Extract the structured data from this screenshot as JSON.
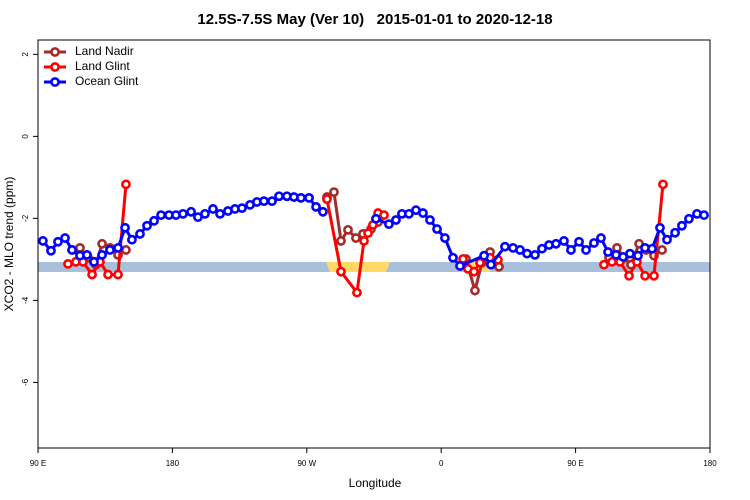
{
  "chart_data": {
    "type": "line",
    "title": "12.5S-7.5S May (Ver 10)   2015-01-01 to 2020-12-18",
    "x_label": "Longitude",
    "y_label": "XCO2 - MLO trend (ppm)",
    "xlim": [
      90,
      540
    ],
    "ylim": [
      -7.6,
      2.35
    ],
    "xticks": [
      {
        "value": 90,
        "label": "90 E"
      },
      {
        "value": 180,
        "label": "180"
      },
      {
        "value": 270,
        "label": "90 W"
      },
      {
        "value": 360,
        "label": "0"
      },
      {
        "value": 450,
        "label": "90 E"
      },
      {
        "value": 540,
        "label": "180"
      }
    ],
    "yticks": [
      2,
      0,
      -2,
      -4,
      -6
    ],
    "legend": "top-left",
    "series": [
      {
        "name": "Land Nadir",
        "color": "#a52a2a",
        "x": [
          112.8,
          118.1,
          123.5,
          128.8,
          132.9,
          138.2,
          143.6,
          148.9,
          240,
          283.5,
          288.2,
          292.9,
          297.6,
          302.9,
          307.6,
          313.0,
          317.7,
          350,
          376.6,
          382.6,
          387.3,
          392.7,
          398.7,
          450,
          472.4,
          477.7,
          482.4,
          487.1,
          492.5,
          497.2,
          502.5,
          507.9
        ],
        "values": [
          -2.77,
          -2.72,
          -2.96,
          -3.13,
          -2.62,
          -2.72,
          -2.89,
          -2.77,
          null,
          -1.48,
          -1.36,
          -2.55,
          -2.28,
          -2.48,
          -2.38,
          -2.26,
          -2.09,
          null,
          -2.99,
          -3.76,
          -3.08,
          -2.82,
          -3.18,
          null,
          -2.96,
          -2.72,
          -2.96,
          -3.13,
          -2.62,
          -2.77,
          -2.91,
          -2.77
        ]
      },
      {
        "name": "Land Glint",
        "color": "#ff0000",
        "x": [
          110.1,
          115.4,
          120.1,
          126.2,
          131.5,
          136.9,
          143.6,
          148.9,
          240,
          283.5,
          292.9,
          303.6,
          308.3,
          311.0,
          314.3,
          317.7,
          321.7,
          350,
          374.6,
          377.9,
          382.0,
          386.0,
          392.7,
          398.0,
          450,
          469.0,
          474.4,
          479.7,
          485.8,
          491.1,
          496.5,
          502.5,
          508.5
        ],
        "values": [
          -3.11,
          -3.06,
          -3.06,
          -3.37,
          -3.06,
          -3.37,
          -3.37,
          -1.17,
          null,
          -1.53,
          -3.3,
          -3.81,
          -2.55,
          -2.36,
          -2.16,
          -1.87,
          -1.92,
          null,
          -2.99,
          -3.23,
          -3.3,
          -3.08,
          -2.96,
          -3.01,
          null,
          -3.13,
          -3.06,
          -3.06,
          -3.4,
          -3.06,
          -3.4,
          -3.4,
          -1.17
        ]
      },
      {
        "name": "Ocean Glint",
        "color": "#0000ff",
        "x": [
          93.3,
          98.7,
          103.4,
          108.1,
          112.8,
          118.1,
          122.8,
          127.5,
          132.9,
          138.2,
          143.6,
          148.3,
          152.9,
          158.3,
          163.0,
          167.7,
          172.4,
          177.7,
          182.4,
          187.1,
          192.5,
          197.1,
          201.8,
          207.2,
          211.9,
          217.2,
          221.9,
          226.6,
          232.0,
          236.6,
          241.3,
          246.7,
          251.4,
          256.7,
          261.4,
          266.1,
          271.5,
          276.2,
          280.8,
          300,
          316.3,
          325.0,
          329.7,
          333.7,
          338.4,
          343.1,
          347.8,
          352.5,
          357.2,
          362.5,
          367.9,
          372.6,
          388.7,
          393.3,
          402.7,
          408.1,
          412.8,
          417.5,
          422.8,
          427.5,
          432.2,
          436.9,
          442.2,
          446.9,
          452.3,
          457.0,
          462.3,
          467.0,
          471.7,
          477.1,
          481.8,
          486.4,
          491.8,
          496.5,
          501.2,
          506.5,
          511.2,
          516.6,
          521.2,
          525.9,
          531.3,
          536.0
        ],
        "values": [
          -2.55,
          -2.79,
          -2.57,
          -2.48,
          -2.77,
          -2.91,
          -2.89,
          -3.06,
          -2.89,
          -2.77,
          -2.72,
          -2.23,
          -2.52,
          -2.38,
          -2.18,
          -2.06,
          -1.92,
          -1.92,
          -1.92,
          -1.89,
          -1.84,
          -1.97,
          -1.89,
          -1.77,
          -1.89,
          -1.82,
          -1.77,
          -1.75,
          -1.67,
          -1.6,
          -1.58,
          -1.58,
          -1.46,
          -1.46,
          -1.48,
          -1.5,
          -1.5,
          -1.72,
          -1.84,
          null,
          -2.01,
          -2.14,
          -2.04,
          -1.89,
          -1.89,
          -1.8,
          -1.87,
          -2.04,
          -2.26,
          -2.48,
          -2.96,
          -3.16,
          -2.91,
          -3.13,
          -2.69,
          -2.72,
          -2.77,
          -2.86,
          -2.89,
          -2.74,
          -2.65,
          -2.62,
          -2.55,
          -2.77,
          -2.57,
          -2.77,
          -2.6,
          -2.48,
          -2.82,
          -2.89,
          -2.94,
          -2.86,
          -2.91,
          -2.72,
          -2.74,
          -2.23,
          -2.52,
          -2.35,
          -2.18,
          -2.01,
          -1.89,
          -1.92
        ]
      }
    ]
  }
}
